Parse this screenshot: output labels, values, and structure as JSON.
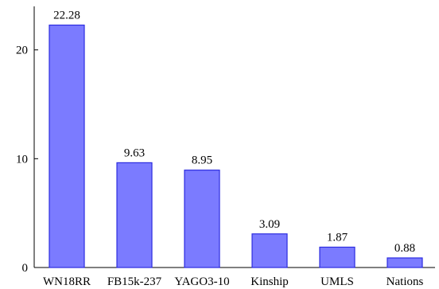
{
  "chart_data": {
    "type": "bar",
    "categories": [
      "WN18RR",
      "FB15k-237",
      "YAGO3-10",
      "Kinship",
      "UMLS",
      "Nations"
    ],
    "values": [
      22.28,
      9.63,
      8.95,
      3.09,
      1.87,
      0.88
    ],
    "data_labels": [
      "22.28",
      "9.63",
      "8.95",
      "3.09",
      "1.87",
      "0.88"
    ],
    "title": "",
    "xlabel": "",
    "ylabel": "",
    "ylim": [
      0,
      24
    ],
    "yticks": [
      0,
      10,
      20
    ],
    "ytick_labels": [
      "0",
      "10",
      "20"
    ],
    "grid": false,
    "legend": "none",
    "colors": {
      "bar_fill": "#7b7bff",
      "bar_stroke": "#2c2ce0",
      "axis": "#000000",
      "text": "#000000"
    }
  }
}
